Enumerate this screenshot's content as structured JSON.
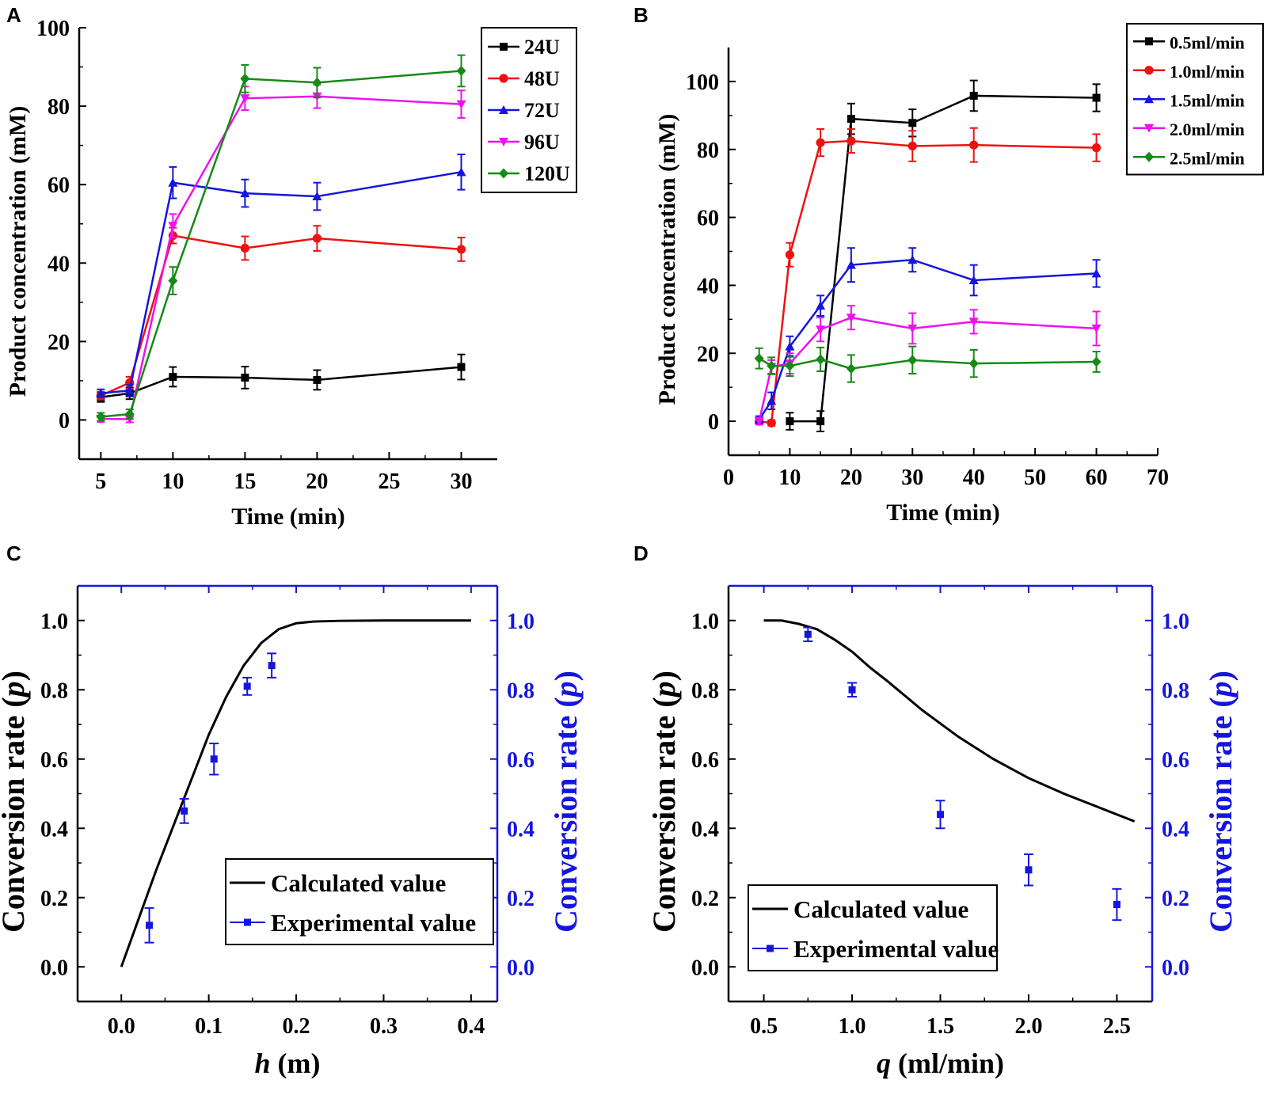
{
  "figure": {
    "panels": [
      "A",
      "B",
      "C",
      "D"
    ]
  },
  "colors": {
    "black": "#000000",
    "red": "#ee1111",
    "blue": "#1515dd",
    "magenta": "#ee11ee",
    "green": "#168a16",
    "axis_blue": "#1515dd"
  },
  "chart_data": [
    {
      "panel": "A",
      "type": "line",
      "xlabel": "Time (min)",
      "ylabel": "Product concentration (mM)",
      "xlim": [
        3.5,
        32.5
      ],
      "ylim": [
        -10,
        100
      ],
      "xticks": [
        5,
        10,
        15,
        20,
        25,
        30
      ],
      "yticks": [
        0,
        20,
        40,
        60,
        80,
        100
      ],
      "legend_position": "top-right",
      "x": [
        5,
        7,
        10,
        15,
        20,
        30
      ],
      "series": [
        {
          "name": "24U",
          "marker": "square",
          "color": "#000000",
          "values": [
            5.8,
            6.8,
            11,
            10.8,
            10.2,
            13.5
          ],
          "errors": [
            1.2,
            1.5,
            2.5,
            2.8,
            2.5,
            3.2
          ]
        },
        {
          "name": "48U",
          "marker": "circle",
          "color": "#ee1111",
          "values": [
            6.2,
            9.5,
            47,
            43.8,
            46.3,
            43.5
          ],
          "errors": [
            1.0,
            1.5,
            2.0,
            3.0,
            3.2,
            3.0
          ]
        },
        {
          "name": "72U",
          "marker": "triangle-up",
          "color": "#1515dd",
          "values": [
            6.8,
            7.5,
            60.5,
            57.8,
            57,
            63.2
          ],
          "errors": [
            1.0,
            1.5,
            4.0,
            3.5,
            3.5,
            4.5
          ]
        },
        {
          "name": "96U",
          "marker": "triangle-down",
          "color": "#ee11ee",
          "values": [
            0.3,
            0.2,
            49.5,
            82,
            82.5,
            80.5
          ],
          "errors": [
            0.8,
            0.8,
            3.0,
            3.0,
            3.0,
            3.5
          ]
        },
        {
          "name": "120U",
          "marker": "diamond",
          "color": "#168a16",
          "values": [
            0.8,
            1.5,
            35.5,
            87,
            86,
            89
          ],
          "errors": [
            1.0,
            1.2,
            3.5,
            3.5,
            3.8,
            4.0
          ]
        }
      ]
    },
    {
      "panel": "B",
      "type": "line",
      "xlabel": "Time (min)",
      "ylabel": "Product concentration (mM)",
      "xlim": [
        0,
        70
      ],
      "ylim": [
        -10,
        110
      ],
      "xticks": [
        0,
        10,
        20,
        30,
        40,
        50,
        60,
        70
      ],
      "yticks": [
        0,
        20,
        40,
        60,
        80,
        100
      ],
      "legend_position": "top-right",
      "x": [
        5,
        7,
        10,
        15,
        20,
        30,
        40,
        60
      ],
      "series": [
        {
          "name": "0.5ml/min",
          "marker": "square",
          "color": "#000000",
          "values": [
            null,
            null,
            0,
            0,
            89,
            87.8,
            95.8,
            95.2
          ],
          "errors": [
            0,
            0,
            2.5,
            3.0,
            4.5,
            4.0,
            4.5,
            4.0
          ]
        },
        {
          "name": "1.0ml/min",
          "marker": "circle",
          "color": "#ee1111",
          "values": [
            0,
            -0.5,
            49,
            82,
            82.5,
            81,
            81.3,
            80.5
          ],
          "errors": [
            0.8,
            0.8,
            3.5,
            4.0,
            3.5,
            4.5,
            5.0,
            4.0
          ]
        },
        {
          "name": "1.5ml/min",
          "marker": "triangle-up",
          "color": "#1515dd",
          "values": [
            0.5,
            6,
            22,
            34,
            46,
            47.5,
            41.5,
            43.5
          ],
          "errors": [
            1.0,
            2.5,
            3.0,
            3.0,
            5.0,
            3.5,
            4.5,
            4.0
          ]
        },
        {
          "name": "2.0ml/min",
          "marker": "triangle-down",
          "color": "#ee11ee",
          "values": [
            0,
            16,
            17,
            27,
            30.5,
            27.3,
            29.3,
            27.3
          ],
          "errors": [
            1.0,
            2.0,
            3.0,
            3.5,
            3.5,
            4.5,
            3.5,
            5.0
          ]
        },
        {
          "name": "2.5ml/min",
          "marker": "diamond",
          "color": "#168a16",
          "values": [
            18.5,
            16.3,
            16.3,
            18.2,
            15.5,
            18,
            17,
            17.5
          ],
          "errors": [
            3.0,
            2.5,
            3.0,
            3.5,
            4.0,
            4.0,
            4.0,
            3.0
          ]
        }
      ]
    },
    {
      "panel": "C",
      "type": "line",
      "xlabel_var": "h",
      "xlabel_unit": " (m)",
      "ylabel_text": "Conversion rate (",
      "ylabel_var": "p",
      "ylabel_close": ")",
      "xlim": [
        -0.05,
        0.43
      ],
      "ylim": [
        -0.1,
        1.1
      ],
      "xticks": [
        "0.0",
        "0.1",
        "0.2",
        "0.3",
        "0.4"
      ],
      "yticks": [
        "0.0",
        "0.2",
        "0.4",
        "0.6",
        "0.8",
        "1.0"
      ],
      "legend_position": "bottom-right",
      "series": [
        {
          "name": "Calculated value",
          "style": "line",
          "color": "#000000",
          "x": [
            0,
            0.02,
            0.04,
            0.06,
            0.08,
            0.1,
            0.12,
            0.14,
            0.16,
            0.18,
            0.2,
            0.22,
            0.25,
            0.3,
            0.35,
            0.4
          ],
          "values": [
            0,
            0.14,
            0.28,
            0.41,
            0.54,
            0.67,
            0.78,
            0.87,
            0.935,
            0.975,
            0.992,
            0.997,
            0.999,
            1,
            1,
            1
          ]
        },
        {
          "name": "Experimental value",
          "style": "errorbar",
          "color": "#1515dd",
          "x": [
            0.032,
            0.072,
            0.106,
            0.144,
            0.172
          ],
          "values": [
            0.12,
            0.45,
            0.6,
            0.81,
            0.87
          ],
          "errors": [
            0.05,
            0.035,
            0.045,
            0.025,
            0.035
          ]
        }
      ]
    },
    {
      "panel": "D",
      "type": "line",
      "xlabel_var": "q",
      "xlabel_unit": " (ml/min)",
      "ylabel_text": "Conversion rate (",
      "ylabel_var": "p",
      "ylabel_close": ")",
      "xlim": [
        0.3,
        2.7
      ],
      "ylim": [
        -0.1,
        1.1
      ],
      "xticks": [
        "0.5",
        "1.0",
        "1.5",
        "2.0",
        "2.5"
      ],
      "yticks": [
        "0.0",
        "0.2",
        "0.4",
        "0.6",
        "0.8",
        "1.0"
      ],
      "legend_position": "bottom-left",
      "series": [
        {
          "name": "Calculated value",
          "style": "line",
          "color": "#000000",
          "x": [
            0.5,
            0.6,
            0.7,
            0.8,
            0.9,
            1.0,
            1.1,
            1.2,
            1.4,
            1.6,
            1.8,
            2.0,
            2.2,
            2.4,
            2.6
          ],
          "values": [
            1.0,
            1.0,
            0.99,
            0.975,
            0.945,
            0.91,
            0.865,
            0.825,
            0.74,
            0.665,
            0.6,
            0.545,
            0.5,
            0.46,
            0.42
          ]
        },
        {
          "name": "Experimental value",
          "style": "errorbar",
          "color": "#1515dd",
          "x": [
            0.75,
            1.0,
            1.5,
            2.0,
            2.5
          ],
          "values": [
            0.96,
            0.8,
            0.44,
            0.28,
            0.18
          ],
          "errors": [
            0.02,
            0.02,
            0.04,
            0.045,
            0.045
          ]
        }
      ]
    }
  ]
}
